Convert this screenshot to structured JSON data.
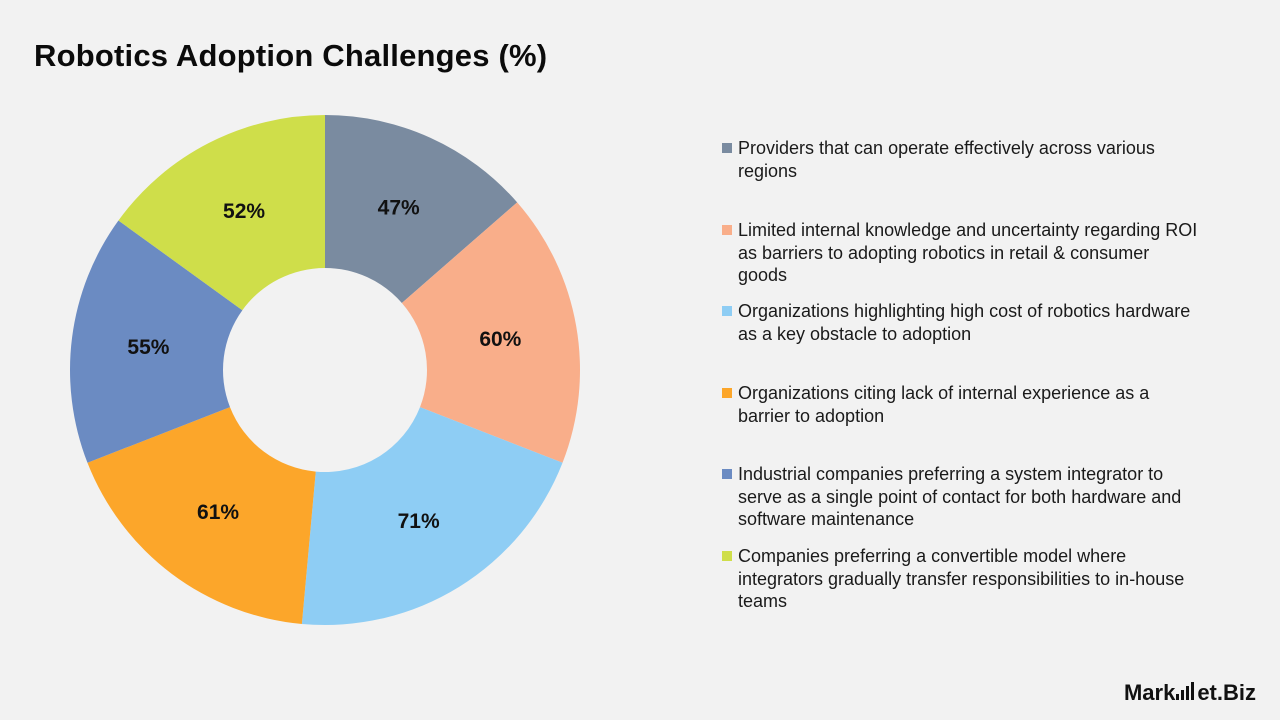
{
  "title": "Robotics Adoption Challenges (%)",
  "chart_data": {
    "type": "pie",
    "donut": true,
    "title": "Robotics Adoption Challenges (%)",
    "legend_position": "right",
    "slices": [
      {
        "label": "Providers that can operate effectively across various regions",
        "value": 47,
        "display": "47%",
        "color": "#7a8ba0"
      },
      {
        "label": "Limited internal knowledge and uncertainty regarding ROI as barriers to adopting robotics in retail & consumer goods",
        "value": 60,
        "display": "60%",
        "color": "#f9ae8a"
      },
      {
        "label": "Organizations highlighting high cost of robotics hardware as a key obstacle to adoption",
        "value": 71,
        "display": "71%",
        "color": "#8ecdf4"
      },
      {
        "label": "Organizations citing lack of internal experience as a barrier to adoption",
        "value": 61,
        "display": "61%",
        "color": "#fca62a"
      },
      {
        "label": "Industrial companies preferring a system integrator to serve as a single point of contact for both hardware and software maintenance",
        "value": 55,
        "display": "55%",
        "color": "#6b8bc2"
      },
      {
        "label": "Companies preferring a convertible model where integrators gradually transfer responsibilities to in-house teams",
        "value": 52,
        "display": "52%",
        "color": "#cfde4a"
      }
    ]
  },
  "brand": {
    "name_left": "Mark",
    "name_mid": "et",
    "name_right": ".Biz"
  }
}
